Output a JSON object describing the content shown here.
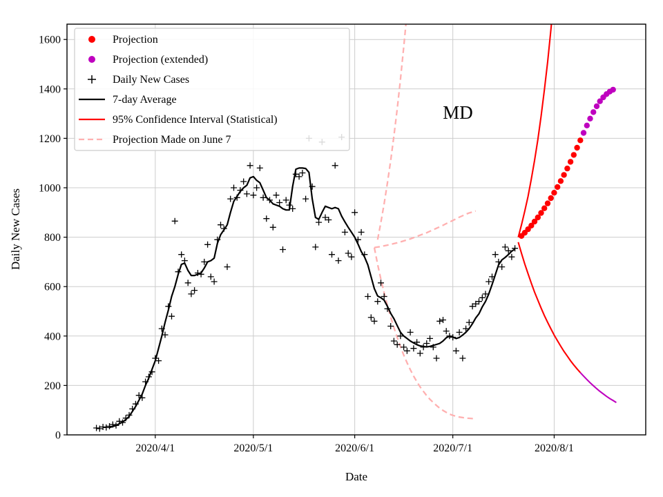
{
  "chart_data": {
    "type": "line",
    "annotation": "MD",
    "xlabel": "Date",
    "ylabel": "Daily New Cases",
    "xlim": [
      "2020-03-05",
      "2020-08-29"
    ],
    "ylim": [
      0,
      1662
    ],
    "grid": true,
    "legend_position": "upper-left",
    "colors": {
      "red": "#ff0000",
      "magenta": "#bf00bf",
      "pink": "#ffb0b0",
      "black": "#000000",
      "grid": "#cccccc"
    },
    "yticks": [
      0,
      200,
      400,
      600,
      800,
      1000,
      1200,
      1400,
      1600
    ],
    "xticks": [
      "2020-04-01",
      "2020-05-01",
      "2020-06-01",
      "2020-07-01",
      "2020-08-01"
    ],
    "xtick_labels": [
      "2020/4/1",
      "2020/5/1",
      "2020/6/1",
      "2020/7/1",
      "2020/8/1"
    ],
    "legend": [
      {
        "label": "Projection",
        "type": "dot",
        "color": "#ff0000"
      },
      {
        "label": "Projection (extended)",
        "type": "dot",
        "color": "#bf00bf"
      },
      {
        "label": "Daily New Cases",
        "type": "plus",
        "color": "#000000"
      },
      {
        "label": "7-day Average",
        "type": "line",
        "color": "#000000"
      },
      {
        "label": "95% Confidence Interval (Statistical)",
        "type": "line",
        "color": "#ff0000"
      },
      {
        "label": "Projection Made on June 7",
        "type": "dashline",
        "color": "#ffb0b0"
      }
    ],
    "series": {
      "daily_new_cases": {
        "name": "Daily New Cases",
        "start": "2020-03-14",
        "values": [
          28,
          25,
          32,
          30,
          35,
          42,
          38,
          55,
          50,
          68,
          80,
          105,
          125,
          160,
          150,
          215,
          235,
          255,
          310,
          300,
          430,
          405,
          520,
          480,
          865,
          660,
          730,
          705,
          615,
          570,
          585,
          655,
          650,
          700,
          770,
          640,
          620,
          790,
          850,
          835,
          680,
          955,
          1000,
          960,
          990,
          1025,
          975,
          1090,
          970,
          1000,
          1080,
          960,
          875,
          950,
          840,
          970,
          940,
          750,
          950,
          930,
          915,
          1055,
          1045,
          1060,
          955,
          1200,
          1005,
          760,
          860,
          1185,
          880,
          870,
          730,
          1090,
          705,
          1205,
          820,
          735,
          720,
          900,
          790,
          820,
          730,
          560,
          475,
          460,
          540,
          615,
          560,
          510,
          440,
          380,
          365,
          400,
          355,
          340,
          415,
          350,
          375,
          330,
          355,
          370,
          390,
          355,
          310,
          460,
          465,
          420,
          400,
          395,
          340,
          415,
          310,
          430,
          455,
          520,
          530,
          540,
          555,
          570,
          620,
          640,
          730,
          700,
          680,
          760,
          745,
          720,
          755
        ]
      },
      "seven_day_average": {
        "name": "7-day Average",
        "start": "2020-03-18",
        "values": [
          30,
          34,
          38,
          45,
          52,
          62,
          75,
          95,
          115,
          140,
          165,
          200,
          230,
          265,
          300,
          350,
          400,
          455,
          505,
          560,
          600,
          650,
          690,
          695,
          665,
          645,
          645,
          650,
          655,
          675,
          700,
          705,
          715,
          775,
          810,
          830,
          850,
          900,
          945,
          965,
          985,
          1000,
          1010,
          1040,
          1045,
          1030,
          1020,
          990,
          960,
          950,
          935,
          930,
          925,
          915,
          910,
          910,
          1005,
          1075,
          1080,
          1080,
          1078,
          1062,
          955,
          880,
          872,
          900,
          925,
          920,
          915,
          920,
          915,
          885,
          862,
          840,
          820,
          800,
          772,
          742,
          720,
          688,
          640,
          592,
          562,
          555,
          545,
          520,
          492,
          470,
          442,
          415,
          400,
          390,
          380,
          372,
          365,
          360,
          358,
          356,
          358,
          362,
          366,
          370,
          380,
          393,
          400,
          396,
          390,
          394,
          404,
          415,
          430,
          450,
          473,
          490,
          518,
          540,
          570,
          608,
          648,
          688,
          708,
          718,
          730,
          743,
          752
        ]
      },
      "projection": {
        "name": "Projection",
        "start": "2020-07-22",
        "values": [
          805,
          818,
          832,
          847,
          863,
          880,
          898,
          917,
          937,
          958,
          980,
          1003,
          1027,
          1052,
          1078,
          1105,
          1133,
          1162,
          1192
        ]
      },
      "projection_extended": {
        "name": "Projection (extended)",
        "start": "2020-08-10",
        "values": [
          1222,
          1252,
          1280,
          1306,
          1330,
          1350,
          1366,
          1379,
          1389,
          1397
        ]
      },
      "ci_upper": {
        "name": "95% CI upper",
        "start": "2020-07-21",
        "values": [
          800,
          850,
          905,
          965,
          1035,
          1110,
          1195,
          1290,
          1395,
          1510,
          1640,
          1785
        ]
      },
      "ci_lower": {
        "name": "95% CI lower",
        "start": "2020-07-21",
        "values": [
          780,
          735,
          692,
          652,
          614,
          578,
          545,
          513,
          483,
          455,
          429,
          404,
          381,
          359,
          338,
          319,
          300,
          283,
          267,
          252
        ]
      },
      "ci_lower_extended": {
        "name": "95% CI lower (extended)",
        "start": "2020-08-09",
        "values": [
          252,
          238,
          224,
          211,
          199,
          187,
          176,
          166,
          156,
          147,
          139,
          131
        ]
      },
      "june7_upper": {
        "name": "June 7 projection upper",
        "start": "2020-06-08",
        "values": [
          790,
          860,
          935,
          1020,
          1110,
          1210,
          1320,
          1440,
          1570,
          1710
        ]
      },
      "june7_mid": {
        "name": "June 7 projection",
        "start": "2020-06-07",
        "values": [
          758,
          760,
          762,
          765,
          768,
          771,
          774,
          777,
          781,
          785,
          789,
          793,
          798,
          803,
          808,
          813,
          818,
          824,
          830,
          836,
          842,
          848,
          855,
          861,
          868,
          874,
          881,
          887,
          893,
          898,
          902,
          906
        ]
      },
      "june7_lower": {
        "name": "June 7 projection lower",
        "start": "2020-06-07",
        "values": [
          758,
          690,
          630,
          575,
          524,
          477,
          434,
          394,
          357,
          323,
          292,
          264,
          238,
          215,
          194,
          176,
          159,
          144,
          131,
          119,
          108,
          99,
          91,
          84,
          79,
          75,
          72,
          70,
          68,
          67,
          66,
          66
        ]
      }
    }
  }
}
